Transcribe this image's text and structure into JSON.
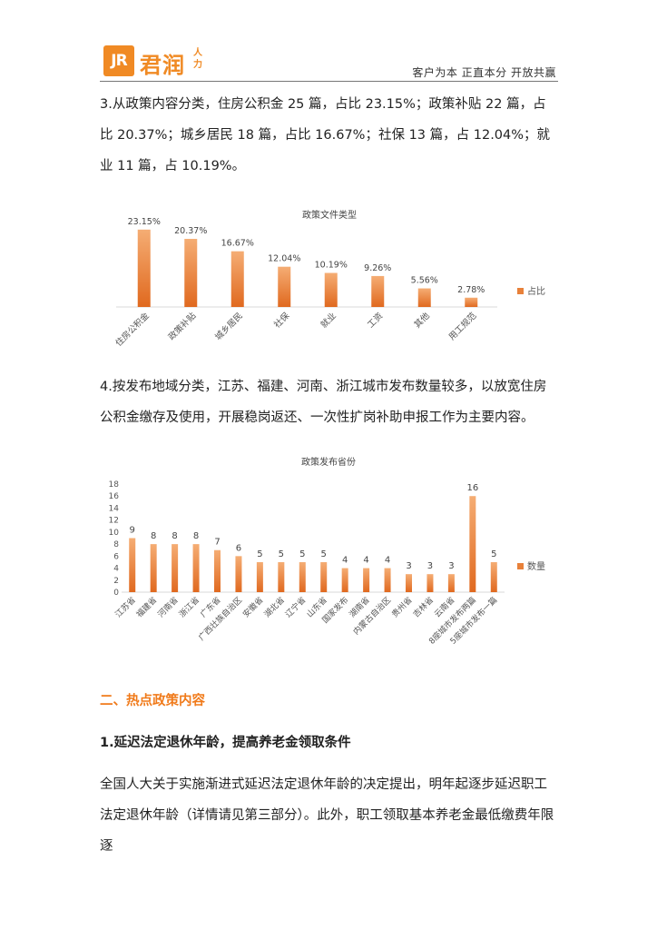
{
  "header": {
    "logo_mark": "JR",
    "logo_name": "君润",
    "logo_sub": "人力",
    "slogan": "客户为本  正直本分  开放共赢"
  },
  "body": {
    "para3": "3.从政策内容分类，住房公积金 25 篇，占比 23.15%；政策补贴 22 篇，占比 20.37%；城乡居民 18 篇，占比 16.67%；社保 13 篇，占 12.04%；就业 11 篇，占 10.19%。",
    "para4": "4.按发布地域分类，江苏、福建、河南、浙江城市发布数量较多，以放宽住房公积金缴存及使用，开展稳岗返还、一次性扩岗补助申报工作为主要内容。",
    "section_title": "二、热点政策内容",
    "sub_title": "1.延迟法定退休年龄，提高养老金领取条件",
    "para5": "全国人大关于实施渐进式延迟法定退休年龄的决定提出，明年起逐步延迟职工法定退休年龄（详情请见第三部分）。此外，职工领取基本养老金最低缴费年限逐"
  },
  "colors": {
    "accent": "#f08a24",
    "bar_top": "#f3a060",
    "bar_bottom": "#e0691f"
  },
  "chart_data": [
    {
      "type": "bar",
      "title": "政策文件类型",
      "categories": [
        "住房公积金",
        "政策补贴",
        "城乡居民",
        "社保",
        "就业",
        "工资",
        "其他",
        "用工规范"
      ],
      "series": [
        {
          "name": "占比",
          "values": [
            23.15,
            20.37,
            16.67,
            12.04,
            10.19,
            9.26,
            5.56,
            2.78
          ]
        }
      ],
      "data_labels": [
        "23.15%",
        "20.37%",
        "16.67%",
        "12.04%",
        "10.19%",
        "9.26%",
        "5.56%",
        "2.78%"
      ],
      "legend": "right"
    },
    {
      "type": "bar",
      "title": "政策发布省份",
      "categories": [
        "江苏省",
        "福建省",
        "河南省",
        "浙江省",
        "广东省",
        "广西壮族自治区",
        "安徽省",
        "湖北省",
        "辽宁省",
        "山东省",
        "国家发布",
        "湖南省",
        "内蒙古自治区",
        "贵州省",
        "吉林省",
        "云南省",
        "8座城市发布两篇",
        "5座城市发布一篇"
      ],
      "series": [
        {
          "name": "数量",
          "values": [
            9,
            8,
            8,
            8,
            7,
            6,
            5,
            5,
            5,
            5,
            4,
            4,
            4,
            3,
            3,
            3,
            16,
            5
          ]
        }
      ],
      "yticks": [
        "0",
        "2",
        "4",
        "6",
        "8",
        "10",
        "12",
        "14",
        "16",
        "18"
      ],
      "ylim": [
        0,
        18
      ],
      "legend": "right"
    }
  ]
}
